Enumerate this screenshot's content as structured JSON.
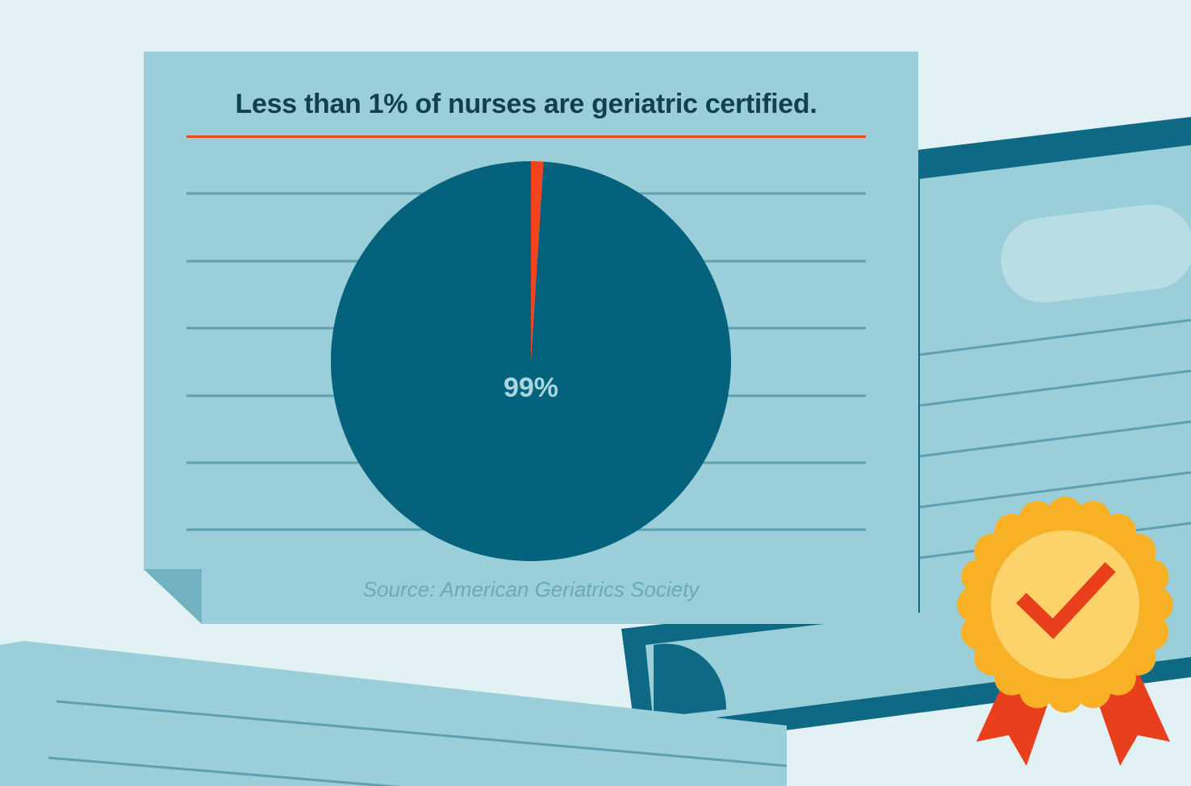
{
  "chart_data": {
    "type": "pie",
    "title": "Less than 1% of nurses are geriatric certified.",
    "slices": [
      {
        "label": "99%",
        "value": 99,
        "color": "#04627c"
      },
      {
        "label": "",
        "value": 1,
        "color": "#f0451f"
      }
    ],
    "source": "Source: American Geriatrics Society"
  },
  "colors": {
    "background": "#e2f1f4",
    "paper": "#9acfd9",
    "paper_shadow": "#72b1c0",
    "ruled_line": "#5e9fb0",
    "title_text": "#13404f",
    "accent_red": "#f0451f",
    "badge_gold": "#f8b124",
    "badge_center": "#fcd36b",
    "certificate_border": "#0e6a84"
  },
  "icons": {
    "badge": "award-ribbon-checkmark-icon"
  }
}
